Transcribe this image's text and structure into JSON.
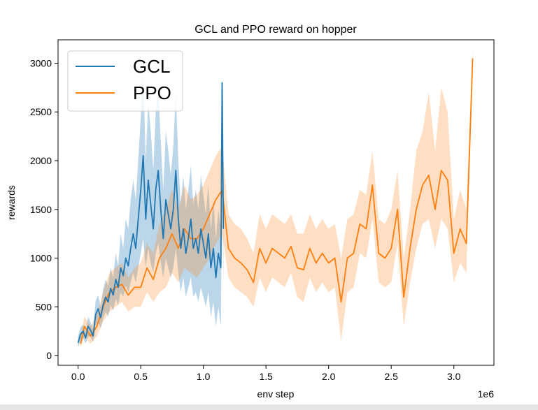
{
  "chart_data": {
    "type": "line",
    "title": "GCL and PPO reward on hopper",
    "xlabel": "env step",
    "ylabel": "rewards",
    "x_offset_label": "1e6",
    "xlim": [
      -0.16,
      3.32
    ],
    "ylim": [
      -100,
      3240
    ],
    "xticks": [
      0.0,
      0.5,
      1.0,
      1.5,
      2.0,
      2.5,
      3.0
    ],
    "xtick_labels": [
      "0.0",
      "0.5",
      "1.0",
      "1.5",
      "2.0",
      "2.5",
      "3.0"
    ],
    "yticks": [
      0,
      500,
      1000,
      1500,
      2000,
      2500,
      3000
    ],
    "ytick_labels": [
      "0",
      "500",
      "1000",
      "1500",
      "2000",
      "2500",
      "3000"
    ],
    "grid": false,
    "legend_position": "top-left",
    "series": [
      {
        "name": "GCL",
        "color": "#1f77b4",
        "x": [
          0.0,
          0.02,
          0.04,
          0.06,
          0.08,
          0.1,
          0.12,
          0.14,
          0.16,
          0.18,
          0.2,
          0.22,
          0.24,
          0.26,
          0.28,
          0.3,
          0.32,
          0.34,
          0.36,
          0.38,
          0.4,
          0.42,
          0.44,
          0.46,
          0.48,
          0.5,
          0.52,
          0.54,
          0.56,
          0.58,
          0.6,
          0.62,
          0.64,
          0.66,
          0.68,
          0.7,
          0.72,
          0.74,
          0.76,
          0.78,
          0.8,
          0.82,
          0.84,
          0.86,
          0.88,
          0.9,
          0.92,
          0.94,
          0.96,
          0.98,
          1.0,
          1.02,
          1.04,
          1.06,
          1.08,
          1.1,
          1.12,
          1.14,
          1.15,
          1.16
        ],
        "values": [
          130,
          220,
          250,
          180,
          300,
          260,
          200,
          420,
          480,
          390,
          520,
          600,
          550,
          690,
          620,
          780,
          700,
          900,
          820,
          1000,
          920,
          1100,
          1250,
          1100,
          1400,
          1700,
          2050,
          1400,
          1800,
          1550,
          1300,
          1700,
          1900,
          1500,
          1200,
          1600,
          1450,
          1300,
          1500,
          1900,
          1400,
          1100,
          1300,
          1050,
          1200,
          1400,
          1100,
          1200,
          1050,
          1300,
          1150,
          1000,
          1250,
          900,
          1100,
          800,
          1050,
          900,
          2800,
          1300
        ],
        "lower": [
          80,
          150,
          180,
          120,
          200,
          190,
          140,
          300,
          350,
          280,
          380,
          450,
          400,
          520,
          460,
          580,
          520,
          650,
          600,
          720,
          650,
          750,
          850,
          750,
          900,
          1050,
          1200,
          900,
          1100,
          950,
          850,
          1050,
          1150,
          950,
          800,
          1000,
          900,
          800,
          900,
          1100,
          850,
          650,
          800,
          600,
          700,
          800,
          600,
          650,
          550,
          700,
          600,
          500,
          650,
          400,
          550,
          300,
          500,
          300,
          2000,
          700
        ],
        "upper": [
          200,
          290,
          320,
          250,
          400,
          340,
          270,
          560,
          620,
          500,
          680,
          780,
          720,
          900,
          800,
          1050,
          920,
          1250,
          1100,
          1400,
          1300,
          1600,
          1800,
          1600,
          2000,
          2450,
          2900,
          2000,
          2600,
          2300,
          1900,
          2500,
          2750,
          2200,
          1700,
          2300,
          2100,
          1850,
          2150,
          2700,
          2000,
          1550,
          1850,
          1500,
          1700,
          1950,
          1550,
          1700,
          1500,
          1850,
          1650,
          1450,
          1750,
          1300,
          1600,
          1200,
          1500,
          1300,
          2900,
          1800
        ]
      },
      {
        "name": "PPO",
        "color": "#ff7f0e",
        "x": [
          0.02,
          0.05,
          0.1,
          0.15,
          0.2,
          0.25,
          0.3,
          0.35,
          0.4,
          0.45,
          0.5,
          0.55,
          0.6,
          0.65,
          0.7,
          0.75,
          0.8,
          0.85,
          0.9,
          0.95,
          1.0,
          1.05,
          1.1,
          1.15,
          1.2,
          1.25,
          1.3,
          1.35,
          1.4,
          1.45,
          1.5,
          1.55,
          1.6,
          1.65,
          1.7,
          1.75,
          1.8,
          1.85,
          1.9,
          1.95,
          2.0,
          2.05,
          2.1,
          2.15,
          2.2,
          2.25,
          2.3,
          2.35,
          2.4,
          2.45,
          2.5,
          2.55,
          2.6,
          2.65,
          2.7,
          2.75,
          2.8,
          2.85,
          2.9,
          2.95,
          3.0,
          3.05,
          3.1,
          3.15
        ],
        "values": [
          120,
          300,
          200,
          300,
          500,
          650,
          700,
          730,
          620,
          700,
          700,
          900,
          780,
          1000,
          1100,
          1250,
          1100,
          1300,
          1200,
          1200,
          1300,
          1450,
          1600,
          1700,
          1100,
          1000,
          950,
          880,
          750,
          1100,
          950,
          1100,
          1050,
          1000,
          1120,
          900,
          880,
          1100,
          950,
          1050,
          950,
          1000,
          550,
          1000,
          1050,
          1350,
          1300,
          1750,
          1050,
          1000,
          1100,
          1500,
          600,
          1100,
          1500,
          1750,
          1850,
          1500,
          1900,
          1800,
          1050,
          1300,
          1150,
          3050
        ],
        "lower": [
          80,
          200,
          120,
          200,
          350,
          450,
          500,
          550,
          450,
          500,
          500,
          650,
          550,
          650,
          700,
          850,
          750,
          900,
          850,
          800,
          900,
          1000,
          1150,
          1250,
          800,
          700,
          650,
          600,
          500,
          800,
          650,
          800,
          750,
          700,
          850,
          600,
          550,
          800,
          650,
          750,
          650,
          700,
          150,
          650,
          700,
          1050,
          1000,
          1400,
          750,
          700,
          750,
          1150,
          300,
          750,
          1100,
          1350,
          1400,
          1100,
          1400,
          1300,
          750,
          950,
          850,
          2900
        ],
        "upper": [
          180,
          400,
          300,
          420,
          650,
          850,
          900,
          950,
          800,
          900,
          950,
          1150,
          1050,
          1350,
          1500,
          1700,
          1500,
          1750,
          1600,
          1650,
          1750,
          1900,
          2050,
          2150,
          1450,
          1350,
          1300,
          1200,
          1050,
          1450,
          1300,
          1450,
          1400,
          1350,
          1450,
          1250,
          1250,
          1450,
          1300,
          1400,
          1300,
          1350,
          1000,
          1400,
          1450,
          1700,
          1650,
          2100,
          1400,
          1350,
          1500,
          1900,
          1000,
          1500,
          2100,
          2300,
          2700,
          2100,
          2750,
          2500,
          1400,
          1700,
          1500,
          3150
        ]
      }
    ]
  }
}
